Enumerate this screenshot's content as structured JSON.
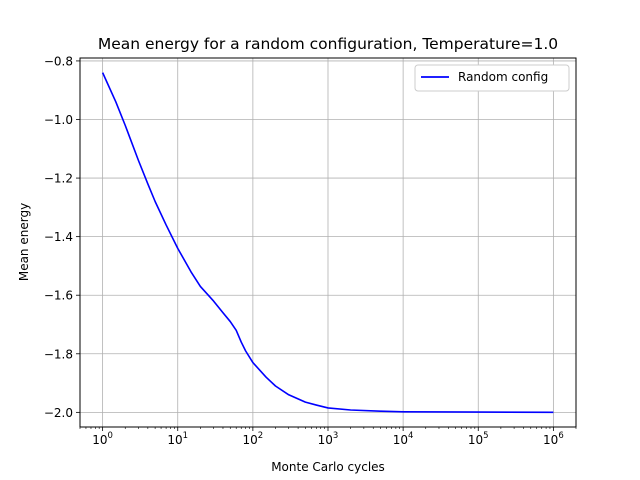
{
  "chart_data": {
    "type": "line",
    "title": "Mean energy for a random configuration, Temperature=1.0",
    "xlabel": "Monte Carlo cycles",
    "ylabel": "Mean energy",
    "xscale": "log",
    "xlim": [
      0.5,
      2000000
    ],
    "ylim": [
      -2.05,
      -0.79
    ],
    "grid": true,
    "legend_position": "top-right",
    "x_ticks": [
      {
        "base": "10",
        "exp": "0",
        "value": 1
      },
      {
        "base": "10",
        "exp": "1",
        "value": 10
      },
      {
        "base": "10",
        "exp": "2",
        "value": 100
      },
      {
        "base": "10",
        "exp": "3",
        "value": 1000
      },
      {
        "base": "10",
        "exp": "4",
        "value": 10000
      },
      {
        "base": "10",
        "exp": "5",
        "value": 100000
      },
      {
        "base": "10",
        "exp": "6",
        "value": 1000000
      }
    ],
    "y_ticks": [
      {
        "value": -0.8,
        "label": "−0.8"
      },
      {
        "value": -1.0,
        "label": "−1.0"
      },
      {
        "value": -1.2,
        "label": "−1.2"
      },
      {
        "value": -1.4,
        "label": "−1.4"
      },
      {
        "value": -1.6,
        "label": "−1.6"
      },
      {
        "value": -1.8,
        "label": "−1.8"
      },
      {
        "value": -2.0,
        "label": "−2.0"
      }
    ],
    "series": [
      {
        "name": "Random config",
        "color": "#0000ff",
        "x": [
          1,
          1.5,
          2,
          3,
          4,
          5,
          7,
          10,
          15,
          20,
          30,
          40,
          50,
          60,
          70,
          80,
          100,
          150,
          200,
          300,
          500,
          700,
          1000,
          2000,
          5000,
          10000,
          100000,
          1000000
        ],
        "y": [
          -0.84,
          -0.94,
          -1.02,
          -1.14,
          -1.22,
          -1.28,
          -1.36,
          -1.44,
          -1.52,
          -1.57,
          -1.62,
          -1.66,
          -1.69,
          -1.72,
          -1.76,
          -1.79,
          -1.83,
          -1.88,
          -1.91,
          -1.94,
          -1.965,
          -1.975,
          -1.985,
          -1.992,
          -1.996,
          -1.998,
          -1.999,
          -2.0
        ]
      }
    ]
  }
}
